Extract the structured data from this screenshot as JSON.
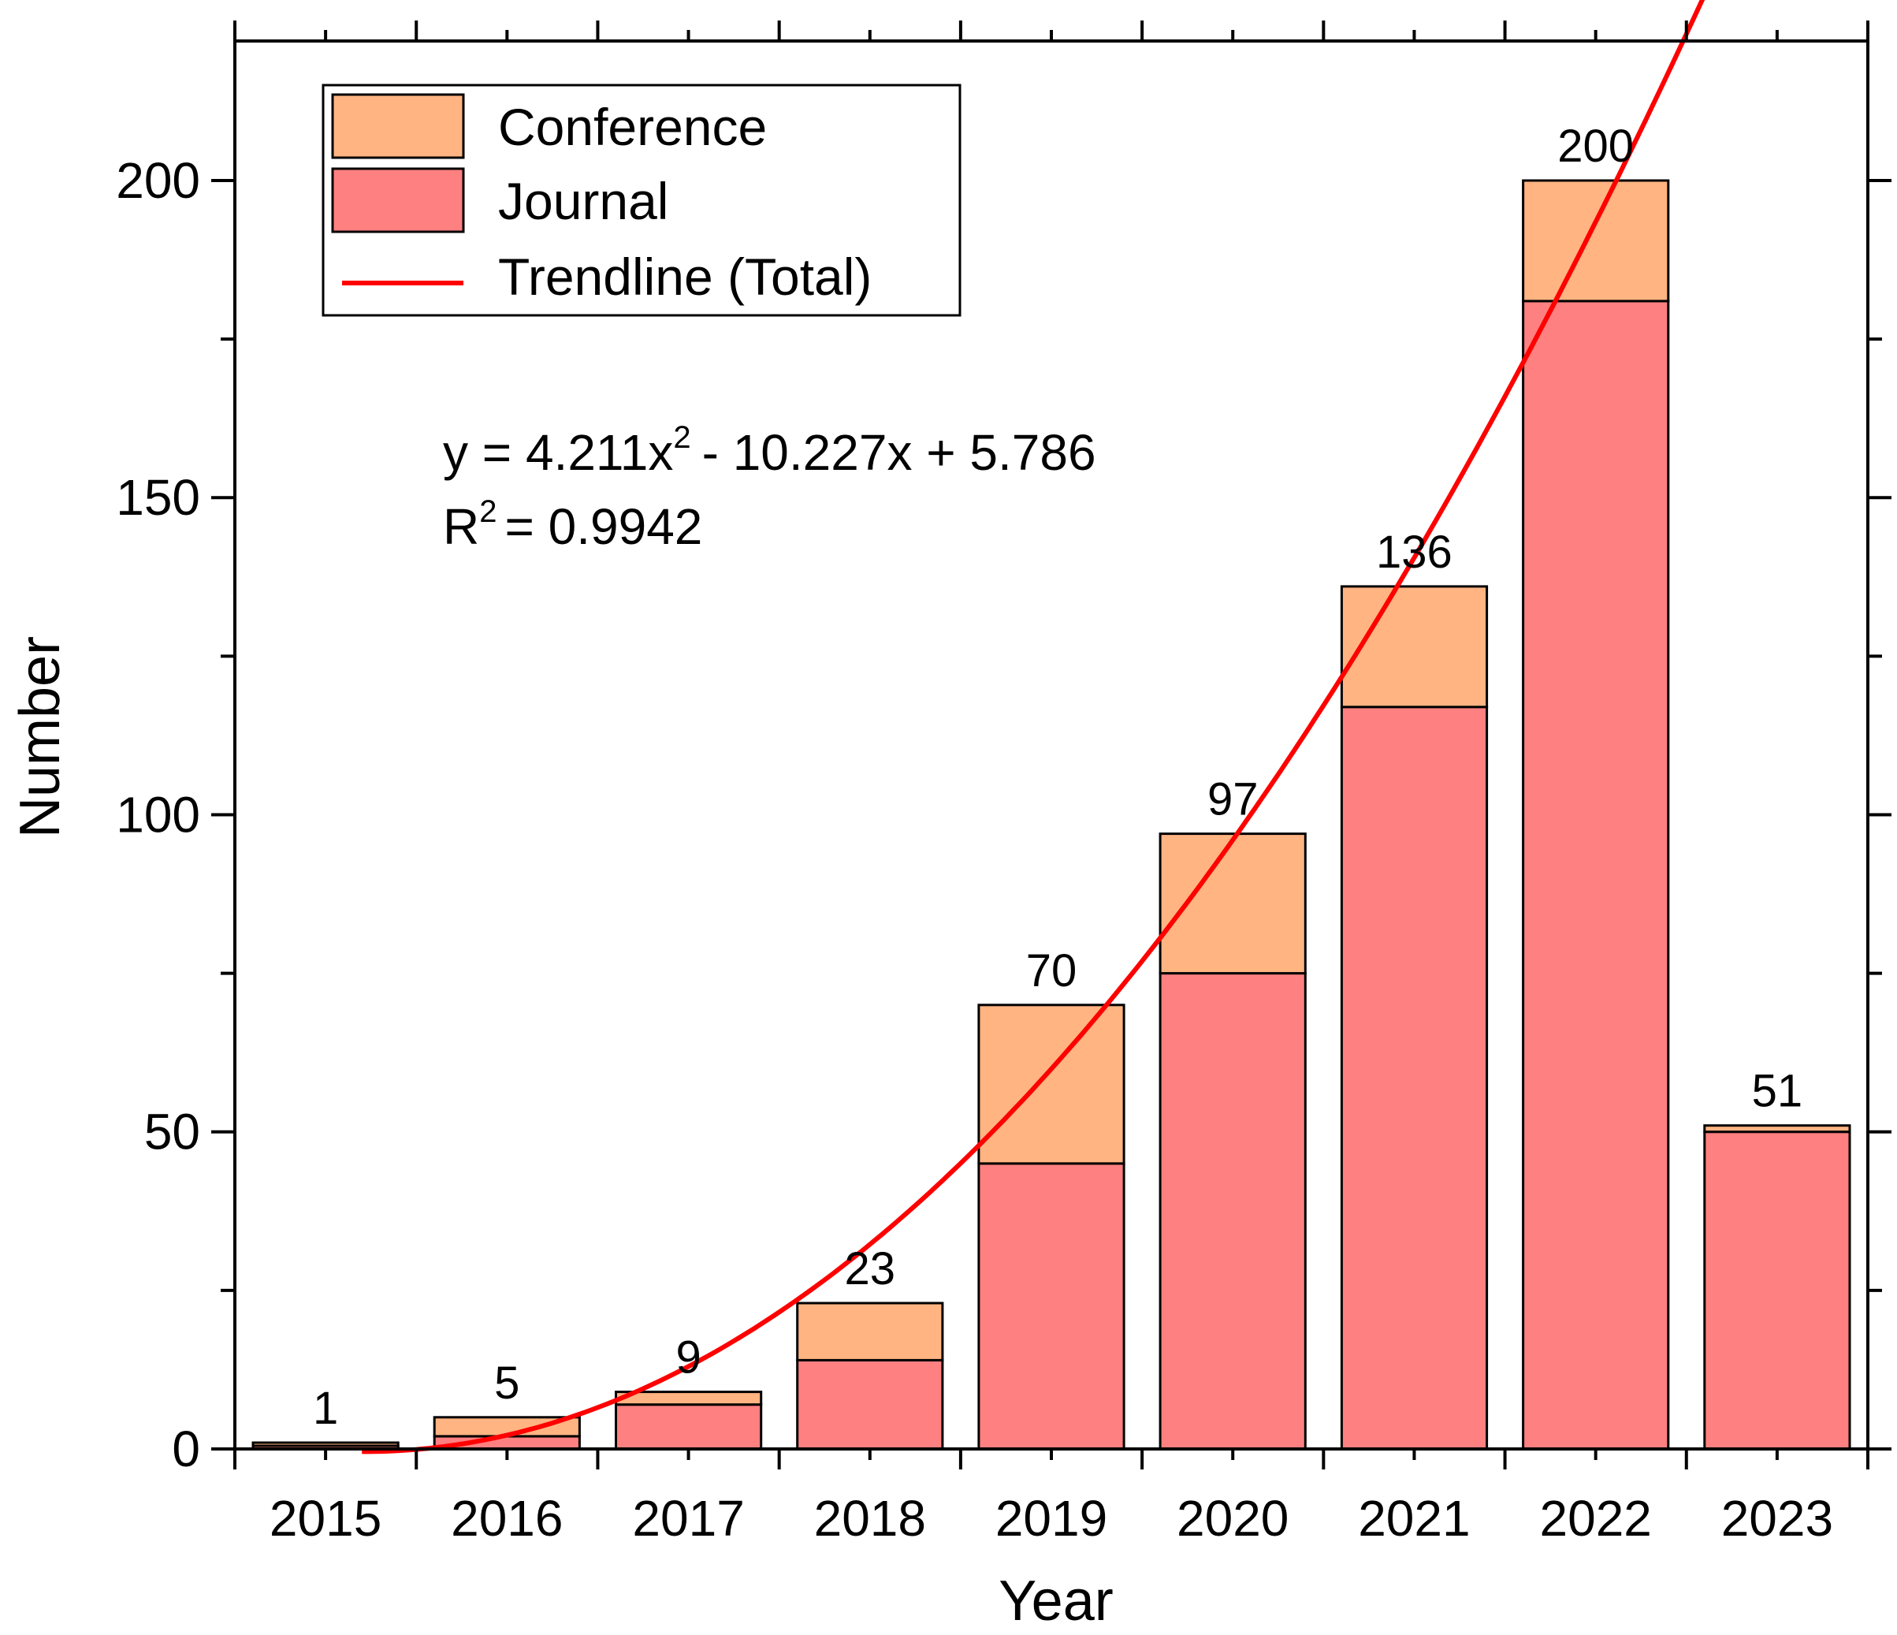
{
  "chart_data": {
    "type": "bar",
    "stacked": true,
    "title": "",
    "xlabel": "Year",
    "ylabel": "Number",
    "ylim": [
      0,
      222
    ],
    "yticks": [
      0,
      50,
      100,
      150,
      200
    ],
    "categories": [
      "2015",
      "2016",
      "2017",
      "2018",
      "2019",
      "2020",
      "2021",
      "2022",
      "2023"
    ],
    "series": [
      {
        "name": "Journal",
        "color": "#FF8080",
        "values": [
          0.5,
          2,
          7,
          14,
          45,
          75,
          117,
          181,
          50
        ]
      },
      {
        "name": "Conference",
        "color": "#FFB482",
        "values": [
          0.5,
          3,
          2,
          9,
          25,
          22,
          19,
          19,
          1
        ]
      }
    ],
    "totals": [
      1,
      5,
      9,
      23,
      70,
      97,
      136,
      200,
      51
    ],
    "total_labels": [
      "1",
      "5",
      "9",
      "23",
      "70",
      "97",
      "136",
      "200",
      "51"
    ],
    "trendline": {
      "name": "Trendline (Total)",
      "color": "#FF0000",
      "coefficients": {
        "a": 4.211,
        "b": -10.227,
        "c": 5.786
      },
      "x_range": [
        1.2,
        8.65
      ],
      "equation_label": {
        "prefix": "y = 4.211x",
        "sup": "2",
        "suffix": "- 10.227x + 5.786"
      },
      "r2_label": {
        "prefix": "R",
        "sup": "2",
        "suffix": "= 0.9942"
      }
    },
    "legend": {
      "position": "top-left",
      "entries": [
        "Conference",
        "Journal",
        "Trendline (Total)"
      ]
    },
    "grid": false
  }
}
